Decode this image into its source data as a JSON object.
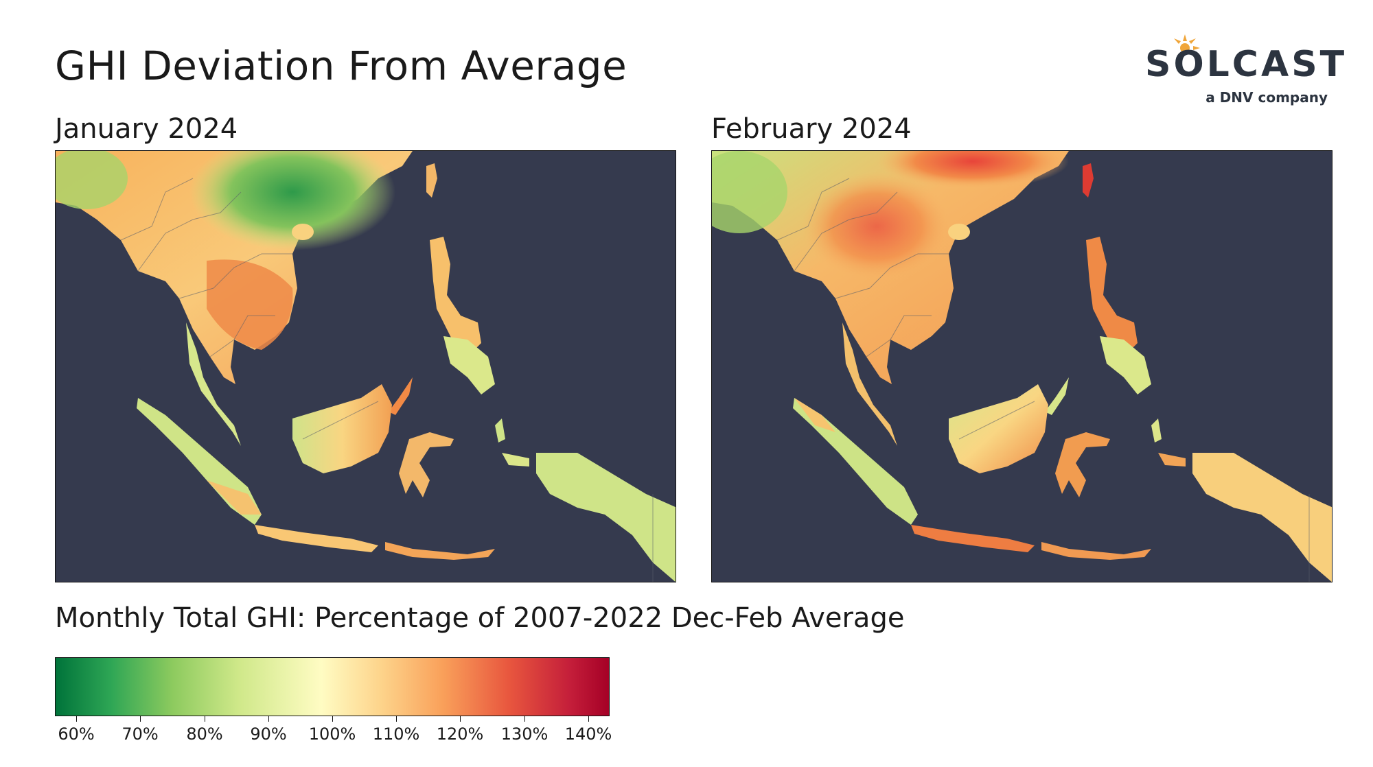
{
  "title": "GHI Deviation From Average",
  "logo": {
    "word": "SOLCAST",
    "tagline": "a DNV company",
    "sun_color": "#f0a63a"
  },
  "panels": [
    {
      "label": "January 2024"
    },
    {
      "label": "February 2024"
    }
  ],
  "legend": {
    "title": "Monthly Total GHI: Percentage of 2007-2022  Dec-Feb Average",
    "ticks": [
      "60%",
      "70%",
      "80%",
      "90%",
      "100%",
      "110%",
      "120%",
      "130%",
      "140%"
    ],
    "colors": {
      "low": "#00733a",
      "mid": "#fffcc3",
      "high": "#a50026",
      "ocean": "#353a4e"
    }
  }
}
